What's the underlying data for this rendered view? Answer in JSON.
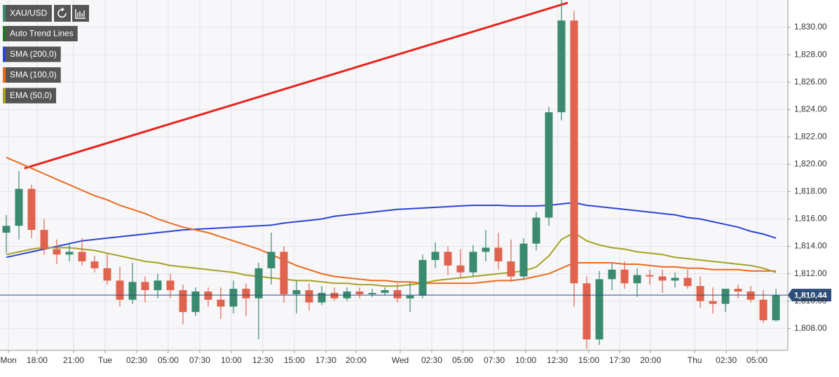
{
  "chart_data": {
    "type": "candlestick",
    "symbol": "XAU/USD",
    "up_color": "#3a8a70",
    "down_color": "#e0634f",
    "open": [
      1815,
      1815.5,
      1818.2,
      1815.2,
      1813.8,
      1813.4,
      1813.6,
      1812.9,
      1812.4,
      1811.5,
      1810.1,
      1811.4,
      1810.8,
      1811.5,
      1810.8,
      1809.2,
      1810.7,
      1810.1,
      1809.6,
      1810.9,
      1810.2,
      1812.4,
      1813.6,
      1810.5,
      1810.8,
      1809.9,
      1810.6,
      1810.2,
      1810.7,
      1810.5,
      1810.6,
      1810.8,
      1810.2,
      1810.4,
      1813,
      1813.6,
      1812.6,
      1812.1,
      1813.6,
      1813.9,
      1812.9,
      1811.8,
      1814.2,
      1816.1,
      1823.8,
      1830.5,
      1811.3,
      1807.2,
      1811.6,
      1812.3,
      1811.3,
      1811.9,
      1811.8,
      1811.5,
      1811.7,
      1811.1,
      1810,
      1809.8,
      1810.9,
      1810.7,
      1810.1,
      1808.6
    ],
    "high": [
      1816.3,
      1819.5,
      1818.5,
      1816,
      1814.5,
      1814.3,
      1814.6,
      1813.3,
      1813.5,
      1812.5,
      1812.8,
      1811.8,
      1812,
      1812,
      1811.2,
      1811,
      1811,
      1811,
      1811.5,
      1811.3,
      1812.8,
      1815,
      1814,
      1811.5,
      1811.3,
      1811.1,
      1811,
      1811,
      1811,
      1810.9,
      1811,
      1811.3,
      1811.4,
      1813.4,
      1814.3,
      1814,
      1813.8,
      1814.1,
      1815.2,
      1815,
      1814.5,
      1814.6,
      1816.5,
      1824.2,
      1832,
      1831.2,
      1811.8,
      1812.2,
      1812.8,
      1812.9,
      1812.4,
      1812.3,
      1812.3,
      1812.1,
      1812.3,
      1811.8,
      1811,
      1810.8,
      1811.2,
      1811.1,
      1810.8,
      1810.9
    ],
    "low": [
      1813.5,
      1814.5,
      1814.6,
      1813.4,
      1812.7,
      1812.9,
      1812.6,
      1812.1,
      1811.2,
      1809.6,
      1809.8,
      1809.9,
      1810.2,
      1810.2,
      1808.3,
      1808.9,
      1809.6,
      1808.7,
      1809.1,
      1808.9,
      1807.2,
      1811.2,
      1809.9,
      1809.1,
      1809.3,
      1809.7,
      1810,
      1810,
      1810.2,
      1810.3,
      1810.4,
      1809.9,
      1809.2,
      1810.2,
      1812.4,
      1811.9,
      1811.7,
      1811.8,
      1812.9,
      1812.3,
      1811.4,
      1811.6,
      1813.7,
      1815.5,
      1823.2,
      1809.6,
      1806.5,
      1806.8,
      1810.8,
      1810.9,
      1810.3,
      1811.2,
      1810.6,
      1811,
      1810.9,
      1809.5,
      1809.1,
      1809.2,
      1810.2,
      1809.9,
      1808.4,
      1808.5
    ],
    "close": [
      1815.5,
      1818.2,
      1815.2,
      1813.8,
      1813.4,
      1813.6,
      1812.9,
      1812.4,
      1811.5,
      1810.1,
      1811.4,
      1810.8,
      1811.5,
      1810.8,
      1809.2,
      1810.7,
      1810.1,
      1809.6,
      1810.9,
      1810.2,
      1812.4,
      1813.6,
      1810.5,
      1810.8,
      1809.9,
      1810.6,
      1810.2,
      1810.7,
      1810.5,
      1810.6,
      1810.8,
      1810.2,
      1810.4,
      1813,
      1813.6,
      1812.6,
      1812.1,
      1813.6,
      1813.9,
      1812.9,
      1811.8,
      1814.2,
      1816.1,
      1823.8,
      1830.5,
      1811.3,
      1807.2,
      1811.6,
      1812.3,
      1811.3,
      1811.9,
      1811.8,
      1811.5,
      1811.7,
      1811.1,
      1810,
      1809.8,
      1810.9,
      1810.7,
      1810.1,
      1808.6,
      1810.44
    ],
    "xlim": [
      -0.5,
      61.94
    ],
    "xticks": [
      {
        "value": 0.17,
        "label": "Mon"
      },
      {
        "value": 2.44,
        "label": "18:00"
      },
      {
        "value": 5.33,
        "label": "21:00"
      },
      {
        "value": 7.83,
        "label": "Tue"
      },
      {
        "value": 10.33,
        "label": "02:30"
      },
      {
        "value": 12.83,
        "label": "05:00"
      },
      {
        "value": 15.33,
        "label": "07:30"
      },
      {
        "value": 17.83,
        "label": "10:00"
      },
      {
        "value": 20.33,
        "label": "12:30"
      },
      {
        "value": 22.83,
        "label": "15:00"
      },
      {
        "value": 25.33,
        "label": "17:30"
      },
      {
        "value": 27.72,
        "label": "20:00"
      },
      {
        "value": 31.22,
        "label": "Wed"
      },
      {
        "value": 33.72,
        "label": "02:30"
      },
      {
        "value": 36.17,
        "label": "05:00"
      },
      {
        "value": 38.67,
        "label": "07:30"
      },
      {
        "value": 41.17,
        "label": "10:00"
      },
      {
        "value": 43.67,
        "label": "12:30"
      },
      {
        "value": 46.17,
        "label": "15:00"
      },
      {
        "value": 48.61,
        "label": "17:30"
      },
      {
        "value": 51.06,
        "label": "20:00"
      },
      {
        "value": 54.56,
        "label": "Thu"
      },
      {
        "value": 57.06,
        "label": "02:30"
      },
      {
        "value": 59.5,
        "label": "05:00"
      }
    ],
    "ylim": [
      1806.4,
      1832
    ],
    "yticks": [
      {
        "value": 1808,
        "label": "1,808.00"
      },
      {
        "value": 1810,
        "label": "1,810.00"
      },
      {
        "value": 1812,
        "label": "1,812.00"
      },
      {
        "value": 1814,
        "label": "1,814.00"
      },
      {
        "value": 1816,
        "label": "1,816.00"
      },
      {
        "value": 1818,
        "label": "1,818.00"
      },
      {
        "value": 1820,
        "label": "1,820.00"
      },
      {
        "value": 1822,
        "label": "1,822.00"
      },
      {
        "value": 1824,
        "label": "1,824.00"
      },
      {
        "value": 1826,
        "label": "1,826.00"
      },
      {
        "value": 1828,
        "label": "1,828.00"
      },
      {
        "value": 1830,
        "label": "1,830.00"
      }
    ],
    "grid": true,
    "last_price": {
      "value": 1810.44,
      "label": "1,810.44"
    },
    "indicators": [
      {
        "name": "Auto Trend Lines",
        "color": "#1f7a1f",
        "line_color": "#e8231f",
        "x": [
          1.44,
          44.5
        ],
        "values": [
          1819.7,
          1831.8
        ]
      },
      {
        "name": "SMA (200,0)",
        "color": "#2a44d8",
        "values": [
          1813.2,
          1813.4,
          1813.6,
          1813.8,
          1814.0,
          1814.2,
          1814.4,
          1814.5,
          1814.6,
          1814.7,
          1814.8,
          1814.9,
          1815.0,
          1815.1,
          1815.2,
          1815.25,
          1815.3,
          1815.35,
          1815.4,
          1815.45,
          1815.5,
          1815.55,
          1815.7,
          1815.8,
          1815.9,
          1816.0,
          1816.2,
          1816.3,
          1816.4,
          1816.5,
          1816.6,
          1816.7,
          1816.75,
          1816.8,
          1816.85,
          1816.9,
          1816.95,
          1817.0,
          1817.0,
          1817.0,
          1816.95,
          1816.95,
          1816.95,
          1817.0,
          1817.1,
          1817.2,
          1817.0,
          1816.9,
          1816.8,
          1816.7,
          1816.6,
          1816.5,
          1816.4,
          1816.3,
          1816.1,
          1816.0,
          1815.8,
          1815.6,
          1815.4,
          1815.1,
          1814.9,
          1814.6
        ]
      },
      {
        "name": "SMA (100,0)",
        "color": "#ec6a1c",
        "values": [
          1820.5,
          1820.1,
          1819.7,
          1819.3,
          1818.9,
          1818.5,
          1818.1,
          1817.7,
          1817.4,
          1817.0,
          1816.7,
          1816.4,
          1816.0,
          1815.7,
          1815.4,
          1815.2,
          1815.0,
          1814.7,
          1814.4,
          1814.1,
          1813.8,
          1813.4,
          1813.0,
          1812.6,
          1812.3,
          1812.0,
          1811.8,
          1811.7,
          1811.6,
          1811.5,
          1811.5,
          1811.4,
          1811.4,
          1811.3,
          1811.3,
          1811.3,
          1811.3,
          1811.3,
          1811.4,
          1811.5,
          1811.5,
          1811.6,
          1811.8,
          1812.0,
          1812.4,
          1812.8,
          1812.8,
          1812.8,
          1812.8,
          1812.7,
          1812.7,
          1812.6,
          1812.5,
          1812.5,
          1812.4,
          1812.4,
          1812.3,
          1812.3,
          1812.3,
          1812.2,
          1812.2,
          1812.2
        ]
      },
      {
        "name": "EMA (50,0)",
        "color": "#a8a024",
        "values": [
          1813.4,
          1813.6,
          1813.8,
          1813.9,
          1813.9,
          1813.9,
          1813.8,
          1813.7,
          1813.5,
          1813.3,
          1813.1,
          1812.9,
          1812.8,
          1812.6,
          1812.5,
          1812.4,
          1812.3,
          1812.2,
          1812.1,
          1811.9,
          1811.8,
          1811.7,
          1811.6,
          1811.5,
          1811.5,
          1811.4,
          1811.3,
          1811.3,
          1811.2,
          1811.2,
          1811.1,
          1811.1,
          1811.2,
          1811.3,
          1811.5,
          1811.6,
          1811.7,
          1811.8,
          1811.9,
          1812.0,
          1812.1,
          1812.2,
          1812.5,
          1813.3,
          1814.5,
          1815.0,
          1814.4,
          1814.1,
          1813.9,
          1813.8,
          1813.6,
          1813.5,
          1813.4,
          1813.2,
          1813.1,
          1813.0,
          1812.9,
          1812.8,
          1812.7,
          1812.6,
          1812.4,
          1812.1
        ]
      }
    ]
  }
}
